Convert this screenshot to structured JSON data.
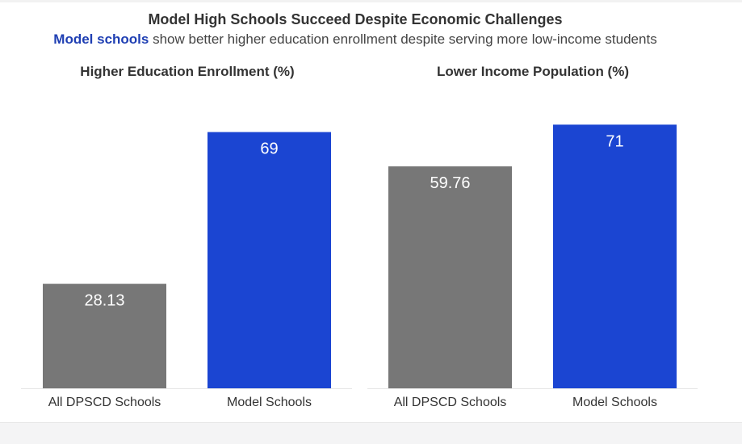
{
  "header": {
    "title": "Model High Schools Succeed Despite Economic Challenges",
    "subtitle_highlight": "Model schools",
    "subtitle_rest": " show better higher education enrollment despite serving more low-income students"
  },
  "colors": {
    "all_schools": "#777777",
    "model_schools": "#1b45d2",
    "highlight_text": "#1f3fb3"
  },
  "chart_data": [
    {
      "type": "bar",
      "title": "Higher Education Enrollment (%)",
      "categories": [
        "All DPSCD Schools",
        "Model Schools"
      ],
      "values": [
        28.13,
        69
      ],
      "labels": [
        "28.13",
        "69"
      ],
      "ylim": [
        0,
        75
      ],
      "grid": false
    },
    {
      "type": "bar",
      "title": "Lower Income Population (%)",
      "categories": [
        "All DPSCD Schools",
        "Model Schools"
      ],
      "values": [
        59.76,
        71
      ],
      "labels": [
        "59.76",
        "71"
      ],
      "ylim": [
        0,
        75
      ],
      "grid": false
    }
  ]
}
